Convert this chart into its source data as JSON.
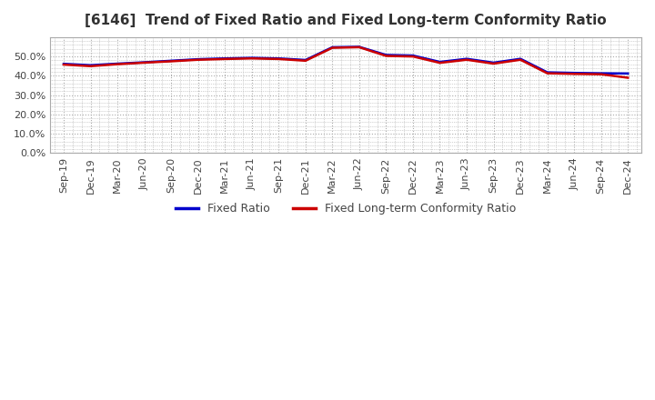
{
  "title": "[6146]  Trend of Fixed Ratio and Fixed Long-term Conformity Ratio",
  "title_fontsize": 11,
  "legend_labels": [
    "Fixed Ratio",
    "Fixed Long-term Conformity Ratio"
  ],
  "legend_colors": [
    "#0000cc",
    "#cc0000"
  ],
  "x_labels": [
    "Sep-19",
    "Dec-19",
    "Mar-20",
    "Jun-20",
    "Sep-20",
    "Dec-20",
    "Mar-21",
    "Jun-21",
    "Sep-21",
    "Dec-21",
    "Mar-22",
    "Jun-22",
    "Sep-22",
    "Dec-22",
    "Mar-23",
    "Jun-23",
    "Sep-23",
    "Dec-23",
    "Mar-24",
    "Jun-24",
    "Sep-24",
    "Dec-24"
  ],
  "fixed_ratio": [
    46.2,
    45.5,
    46.3,
    47.0,
    47.8,
    48.6,
    49.0,
    49.3,
    49.0,
    48.2,
    54.8,
    55.0,
    50.8,
    50.5,
    47.2,
    48.8,
    46.8,
    48.8,
    41.8,
    41.5,
    41.3,
    41.2
  ],
  "fixed_lt_ratio": [
    45.8,
    45.0,
    46.0,
    46.8,
    47.5,
    48.3,
    48.7,
    49.0,
    48.7,
    47.8,
    54.5,
    54.8,
    50.3,
    50.0,
    46.7,
    48.3,
    46.3,
    48.3,
    41.3,
    41.0,
    40.8,
    39.0
  ],
  "ylim": [
    0.0,
    60.0
  ],
  "yticks": [
    0.0,
    10.0,
    20.0,
    30.0,
    40.0,
    50.0
  ],
  "background_color": "#ffffff",
  "plot_bg_color": "#ffffff",
  "grid_color": "#aaaaaa",
  "line_width": 1.8,
  "title_color": "#333333",
  "tick_color": "#444444",
  "legend_fontsize": 9,
  "tick_fontsize": 8
}
